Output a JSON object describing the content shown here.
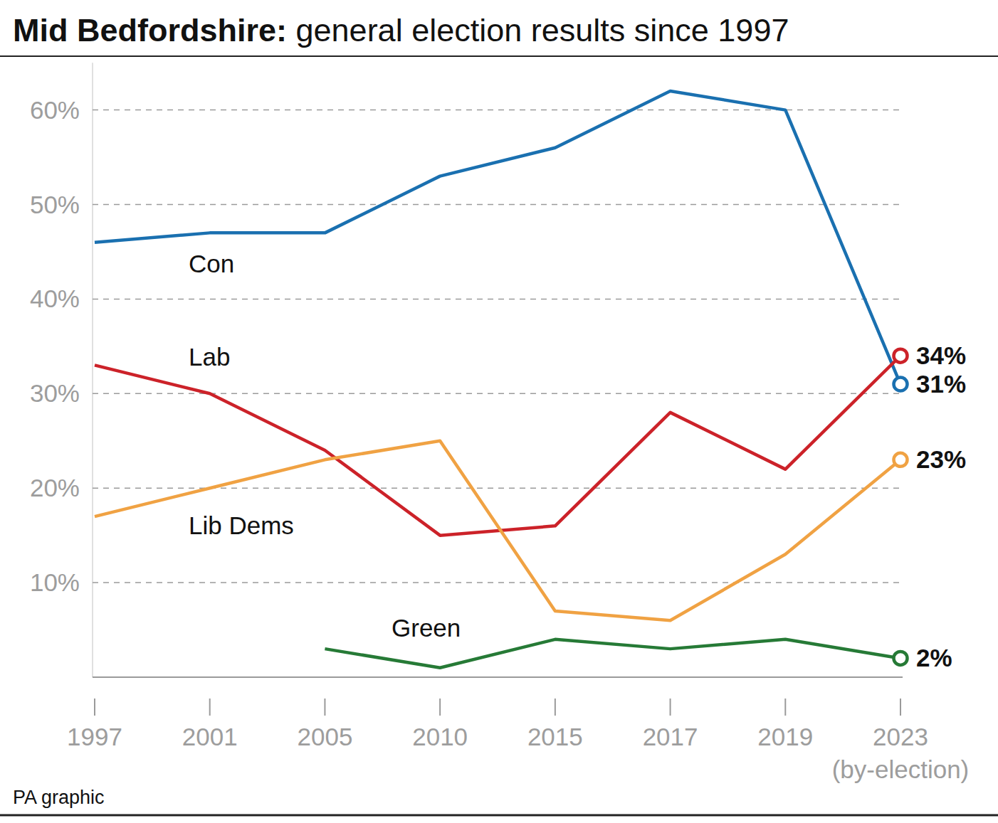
{
  "chart_data": {
    "type": "line",
    "title": "Mid Bedfordshire: general election results since 1997",
    "categories": [
      "1997",
      "2001",
      "2005",
      "2010",
      "2015",
      "2017",
      "2019",
      "2023\n(by-election)"
    ],
    "series": [
      {
        "name": "Con",
        "color": "#1a70b0",
        "marker": "open-circle",
        "values": [
          46,
          47,
          47,
          53,
          56,
          62,
          60,
          31
        ],
        "value_labels": [
          null,
          null,
          null,
          null,
          null,
          null,
          null,
          "31%"
        ]
      },
      {
        "name": "Lab",
        "color": "#cc2229",
        "marker": "open-circle",
        "values": [
          33,
          30,
          24,
          15,
          16,
          28,
          22,
          34
        ],
        "value_labels": [
          null,
          null,
          null,
          null,
          null,
          null,
          null,
          "34%"
        ]
      },
      {
        "name": "Lib Dems",
        "color": "#f0a243",
        "marker": "open-circle",
        "values": [
          17,
          20,
          23,
          25,
          7,
          6,
          13,
          23
        ],
        "value_labels": [
          null,
          null,
          null,
          null,
          null,
          null,
          null,
          "23%"
        ]
      },
      {
        "name": "Green",
        "color": "#267a36",
        "marker": "open-circle",
        "values": [
          null,
          null,
          3,
          1,
          4,
          3,
          4,
          2
        ],
        "value_labels": [
          null,
          null,
          null,
          null,
          null,
          null,
          null,
          "2%"
        ]
      }
    ],
    "ylim": [
      0,
      65
    ],
    "yticks": [
      {
        "value": 10,
        "label": "10%"
      },
      {
        "value": 20,
        "label": "20%"
      },
      {
        "value": 30,
        "label": "30%"
      },
      {
        "value": 40,
        "label": "40%"
      },
      {
        "value": 50,
        "label": "50%"
      },
      {
        "value": 60,
        "label": "60%"
      }
    ],
    "grid": true,
    "data_labels": true,
    "source": "PA graphic"
  }
}
